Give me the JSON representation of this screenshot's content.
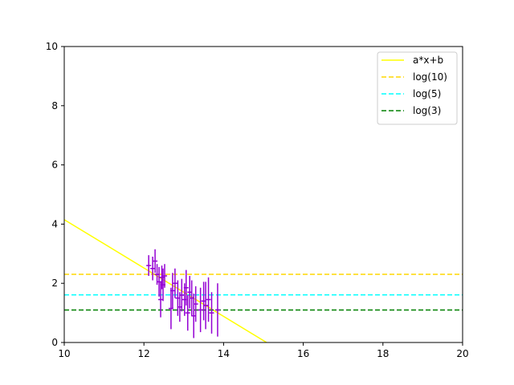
{
  "chart_data": {
    "type": "scatter",
    "title": "",
    "xlabel": "",
    "ylabel": "",
    "xlim": [
      10,
      20
    ],
    "ylim": [
      0,
      10
    ],
    "xticks": [
      "10",
      "12",
      "14",
      "16",
      "18",
      "20"
    ],
    "yticks": [
      "0",
      "2",
      "4",
      "6",
      "8",
      "10"
    ],
    "grid": false,
    "legend_position": "top-right",
    "series": [
      {
        "name": "a*x+b",
        "kind": "line",
        "color": "#ffff00",
        "dash": "solid",
        "x": [
          10,
          15.08
        ],
        "y": [
          4.15,
          0
        ]
      },
      {
        "name": "log(10)",
        "kind": "hline",
        "color": "#ffd700",
        "dash": "dashed",
        "y": 2.3026
      },
      {
        "name": "log(5)",
        "kind": "hline",
        "color": "#00ffff",
        "dash": "dashed",
        "y": 1.6094
      },
      {
        "name": "log(3)",
        "kind": "hline",
        "color": "#008000",
        "dash": "dashed",
        "y": 1.0986
      }
    ],
    "errorbars": {
      "color": "#9400d3",
      "points": [
        {
          "x": 12.12,
          "y": 2.6,
          "err": 0.35
        },
        {
          "x": 12.22,
          "y": 2.5,
          "err": 0.4
        },
        {
          "x": 12.28,
          "y": 2.75,
          "err": 0.4
        },
        {
          "x": 12.33,
          "y": 2.3,
          "err": 0.35
        },
        {
          "x": 12.38,
          "y": 2.05,
          "err": 0.5
        },
        {
          "x": 12.42,
          "y": 1.45,
          "err": 0.6
        },
        {
          "x": 12.45,
          "y": 2.2,
          "err": 0.4
        },
        {
          "x": 12.48,
          "y": 1.95,
          "err": 0.55
        },
        {
          "x": 12.52,
          "y": 2.25,
          "err": 0.4
        },
        {
          "x": 12.68,
          "y": 1.15,
          "err": 0.7
        },
        {
          "x": 12.72,
          "y": 1.75,
          "err": 0.6
        },
        {
          "x": 12.78,
          "y": 2.0,
          "err": 0.5
        },
        {
          "x": 12.85,
          "y": 1.5,
          "err": 0.6
        },
        {
          "x": 12.9,
          "y": 1.2,
          "err": 0.5
        },
        {
          "x": 12.95,
          "y": 1.6,
          "err": 0.55
        },
        {
          "x": 13.02,
          "y": 1.45,
          "err": 0.55
        },
        {
          "x": 13.06,
          "y": 1.85,
          "err": 0.6
        },
        {
          "x": 13.1,
          "y": 1.0,
          "err": 0.6
        },
        {
          "x": 13.15,
          "y": 1.7,
          "err": 0.55
        },
        {
          "x": 13.2,
          "y": 1.5,
          "err": 0.6
        },
        {
          "x": 13.25,
          "y": 0.9,
          "err": 0.75
        },
        {
          "x": 13.3,
          "y": 1.3,
          "err": 0.6
        },
        {
          "x": 13.42,
          "y": 1.1,
          "err": 0.75
        },
        {
          "x": 13.5,
          "y": 1.4,
          "err": 0.65
        },
        {
          "x": 13.55,
          "y": 1.25,
          "err": 0.8
        },
        {
          "x": 13.62,
          "y": 1.45,
          "err": 0.75
        },
        {
          "x": 13.7,
          "y": 1.0,
          "err": 0.7
        },
        {
          "x": 13.85,
          "y": 1.1,
          "err": 0.9
        }
      ]
    }
  }
}
